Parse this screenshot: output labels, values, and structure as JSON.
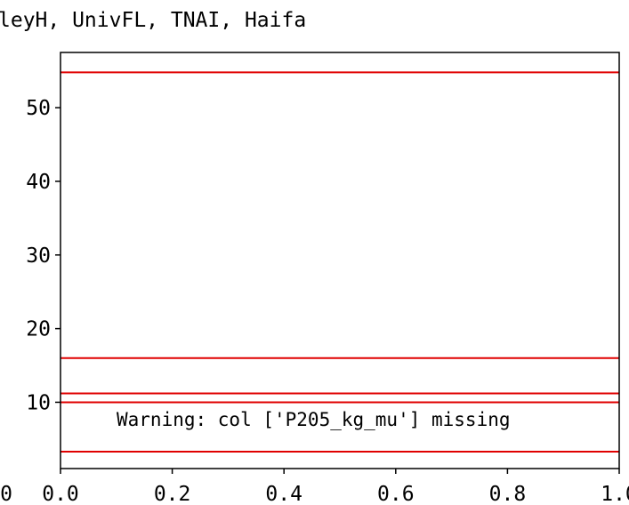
{
  "chart_data": {
    "type": "line",
    "title": "leyH, UnivFL, TNAI, Haifa",
    "xlabel": "",
    "ylabel": "",
    "xlim": [
      0.0,
      1.0
    ],
    "ylim": [
      1.0,
      57.5
    ],
    "x_ticks": [
      "0.0",
      "0.2",
      "0.4",
      "0.6",
      "0.8",
      "1.0"
    ],
    "y_ticks": [
      "10",
      "20",
      "30",
      "40",
      "50"
    ],
    "left_clipped_tick": "0",
    "series": [
      {
        "values": [
          54.8
        ]
      },
      {
        "values": [
          16.0
        ]
      },
      {
        "values": [
          11.2
        ]
      },
      {
        "values": [
          10.0
        ]
      },
      {
        "values": [
          3.3
        ]
      }
    ],
    "line_color": "#e00000",
    "annotation": "Warning: col ['P205_kg_mu'] missing",
    "grid": false
  }
}
